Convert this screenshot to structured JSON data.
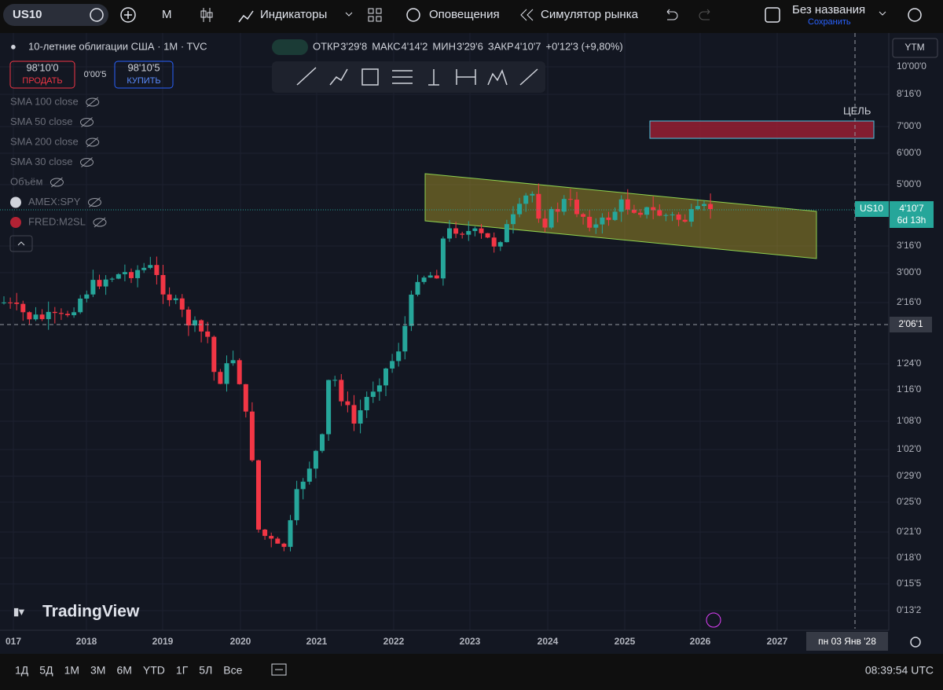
{
  "toolbar": {
    "symbol": "US10",
    "interval": "M",
    "indicators": "Индикаторы",
    "alerts": "Оповещения",
    "replay": "Симулятор рынка",
    "layout_name": "Без названия",
    "save": "Сохранить"
  },
  "legend": {
    "title": "10-летние облигации США · 1M · TVC",
    "ohlc": [
      {
        "label": "ОТКР",
        "value": "3'29'8"
      },
      {
        "label": "МАКС",
        "value": "4'14'2"
      },
      {
        "label": "МИН",
        "value": "3'29'6"
      },
      {
        "label": "ЗАКР",
        "value": "4'10'7"
      }
    ],
    "change": "+0'12'3 (+9,80%)"
  },
  "trade": {
    "sell_price": "98'10'0",
    "sell": "ПРОДАТЬ",
    "spread": "0'00'5",
    "buy_price": "98'10'5",
    "buy": "КУПИТЬ"
  },
  "indicators": [
    "SMA 100 close",
    "SMA 50 close",
    "SMA 200 close",
    "SMA 30 close",
    "Объём",
    "AMEX:SPY",
    "FRED:M2SL"
  ],
  "price_axis": {
    "scale": "YTM",
    "labels": [
      "10'00'0",
      "8'16'0",
      "7'00'0",
      "6'00'0",
      "5'00'0",
      "3'16'0",
      "3'00'0",
      "2'16'0",
      "1'24'0",
      "1'16'0",
      "1'08'0",
      "1'02'0",
      "0'29'0",
      "0'25'0",
      "0'21'0",
      "0'18'0",
      "0'15'5",
      "0'13'2"
    ]
  },
  "time_axis": {
    "labels": [
      "017",
      "2018",
      "2019",
      "2020",
      "2021",
      "2022",
      "2023",
      "2024",
      "2025",
      "2026",
      "2027"
    ]
  },
  "current_price": {
    "symbol": "US10",
    "price": "4'10'7",
    "countdown": "6d 13h"
  },
  "crosshair": {
    "price": "2'06'1",
    "date": "пн 03 Янв '28"
  },
  "annotation": "ЦЕЛЬ",
  "watermark": "TradingView",
  "timeframes": [
    "1Д",
    "5Д",
    "1М",
    "3М",
    "6М",
    "YTD",
    "1Г",
    "5Л",
    "Все"
  ],
  "clock": "08:39:54 UTC"
}
